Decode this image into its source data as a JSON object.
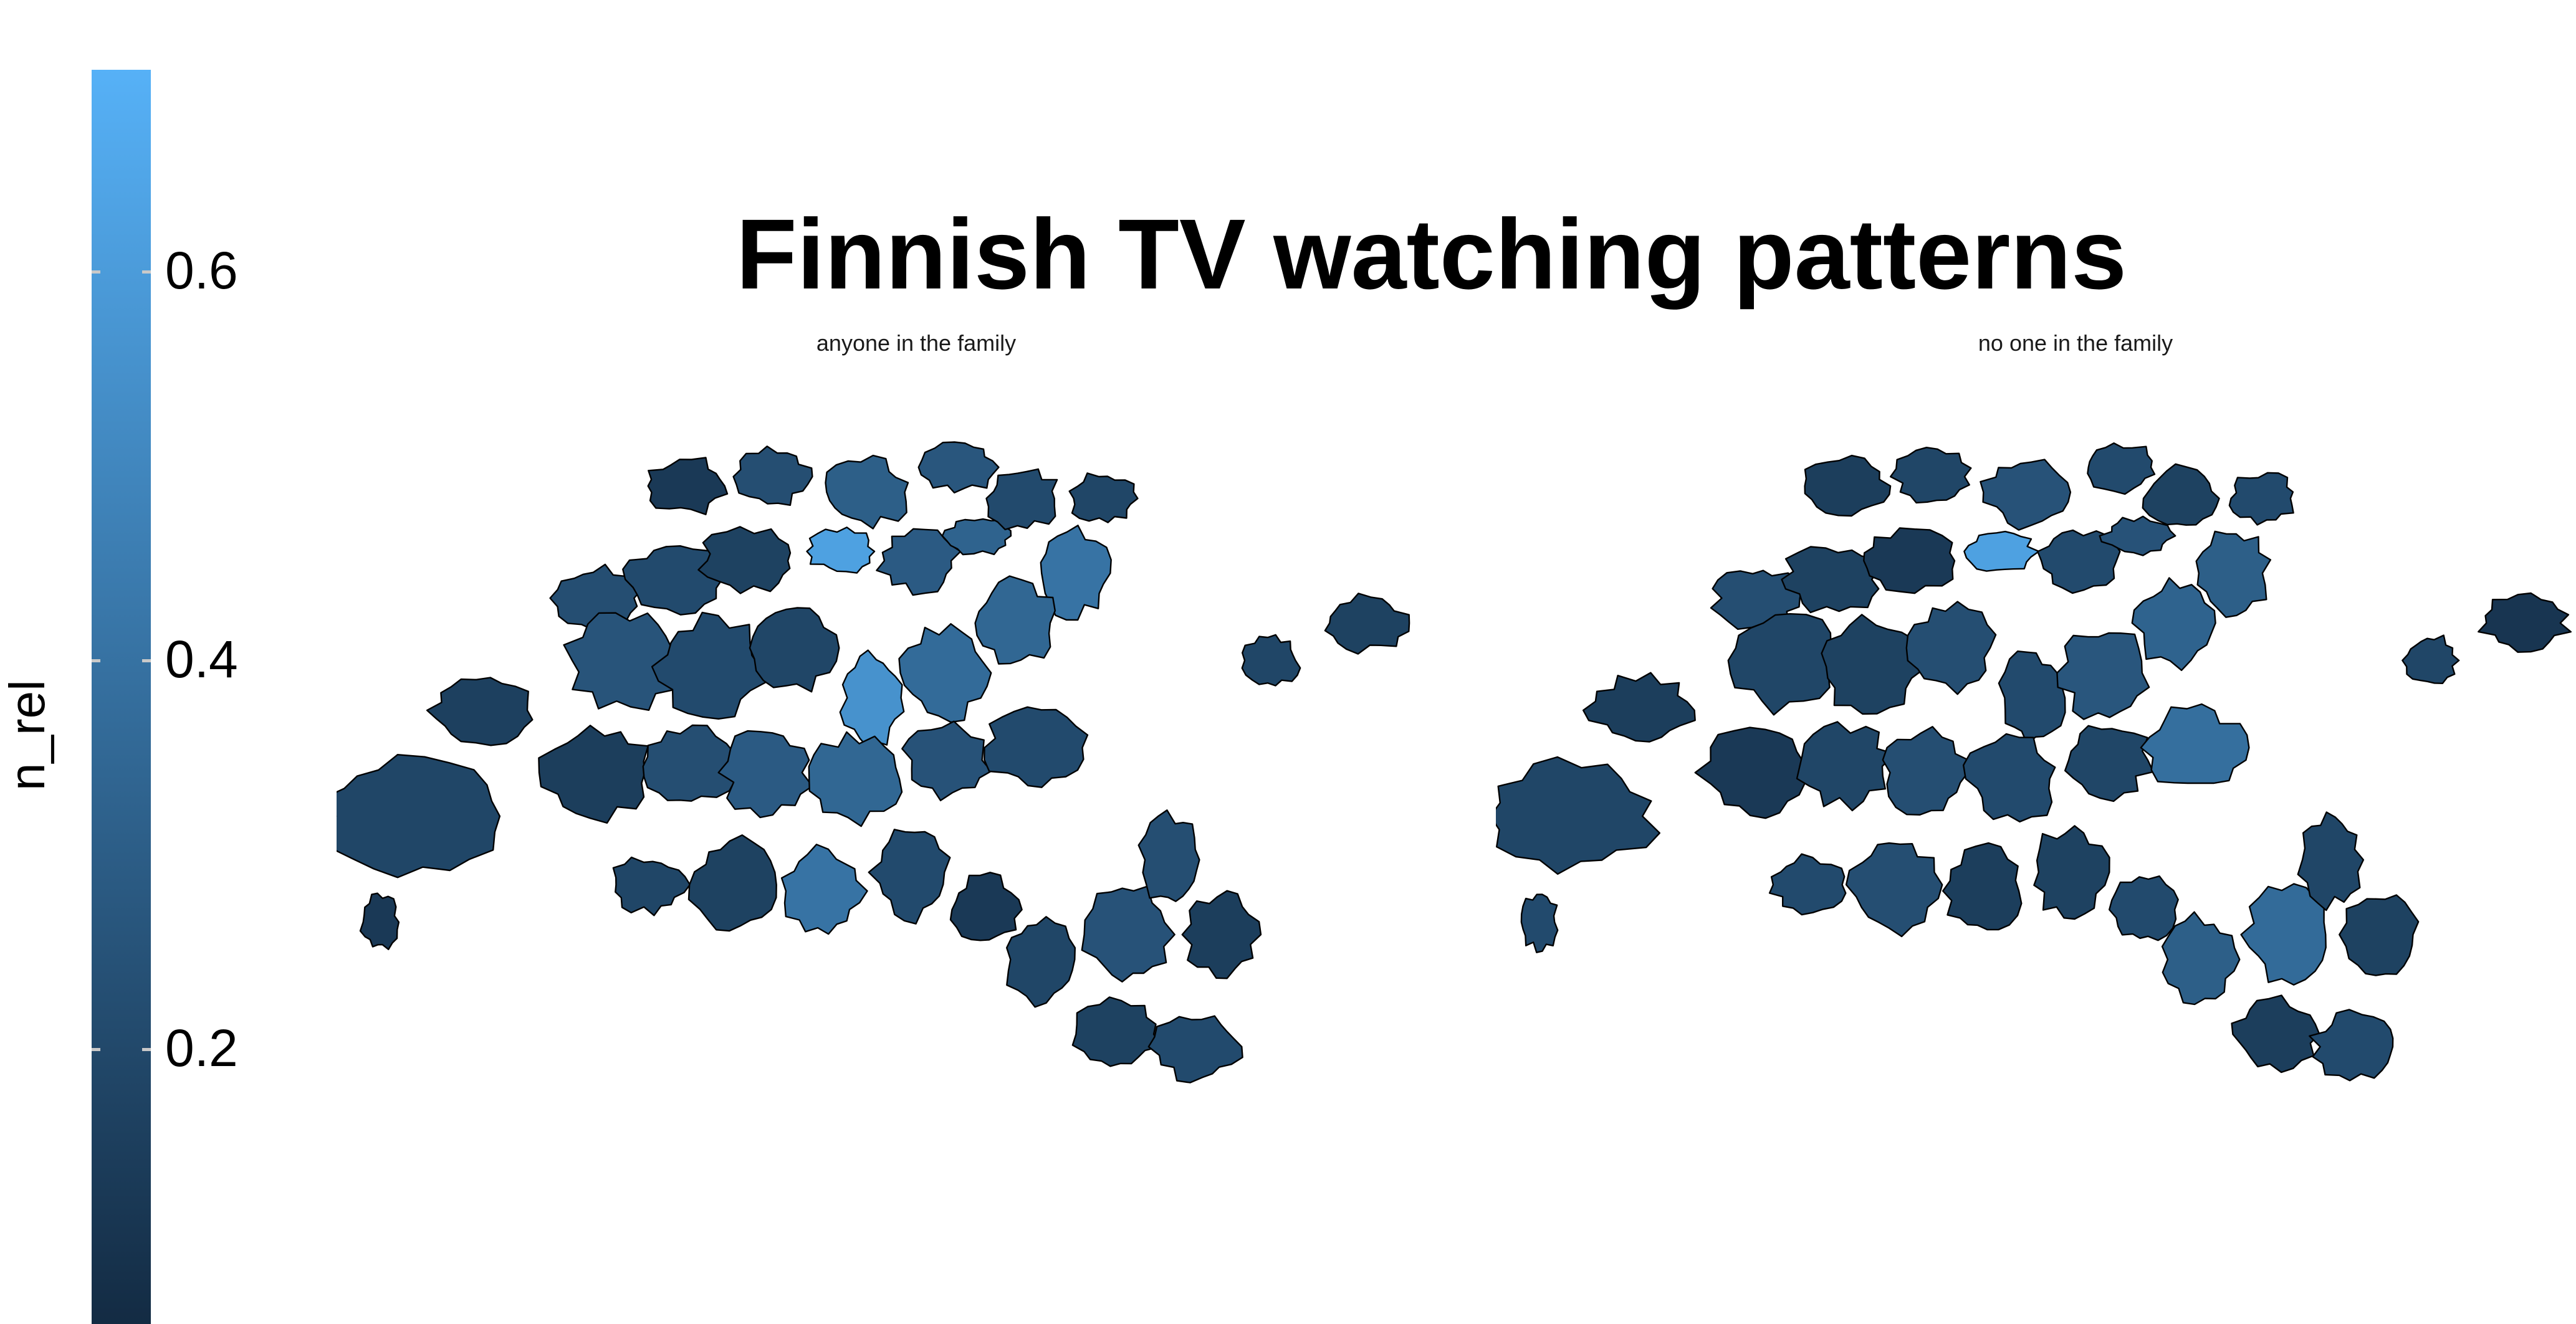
{
  "title": "Finnish TV watching patterns",
  "legend": {
    "title": "n_rel",
    "labels": [
      "0.6",
      "0.4",
      "0.2"
    ],
    "values": [
      0.6,
      0.4,
      0.2
    ],
    "min": 0.05,
    "max": 0.7,
    "colors": {
      "low": "#132B43",
      "high": "#56B1F7"
    }
  },
  "panels": [
    {
      "label": "anyone in the family",
      "regions": [
        0.18,
        0.15,
        0.12,
        0.22,
        0.2,
        0.16,
        0.62,
        0.28,
        0.32,
        0.25,
        0.2,
        0.18,
        0.55,
        0.36,
        0.12,
        0.22,
        0.3,
        0.26,
        0.2,
        0.4,
        0.34,
        0.18,
        0.14,
        0.22,
        0.28,
        0.34,
        0.24,
        0.2,
        0.18,
        0.16,
        0.4,
        0.2,
        0.12,
        0.18,
        0.24,
        0.22,
        0.14,
        0.16,
        0.2,
        0.18,
        0.16
      ]
    },
    {
      "label": "no one in the family",
      "regions": [
        0.18,
        0.14,
        0.2,
        0.22,
        0.16,
        0.12,
        0.62,
        0.2,
        0.24,
        0.18,
        0.16,
        0.22,
        0.2,
        0.26,
        0.14,
        0.18,
        0.24,
        0.2,
        0.16,
        0.3,
        0.32,
        0.2,
        0.12,
        0.18,
        0.22,
        0.2,
        0.18,
        0.38,
        0.2,
        0.22,
        0.14,
        0.16,
        0.2,
        0.3,
        0.36,
        0.18,
        0.16,
        0.14,
        0.2,
        0.18,
        0.1
      ]
    }
  ]
}
